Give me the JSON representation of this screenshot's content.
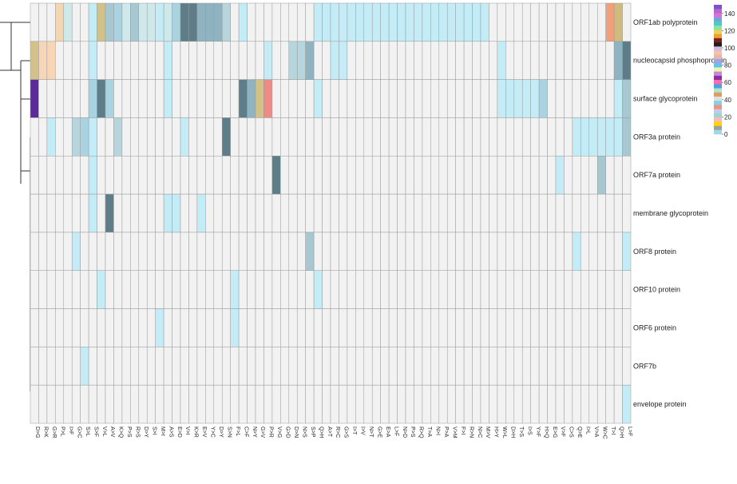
{
  "chart_data": {
    "type": "heatmap",
    "title": "",
    "xlabel": "",
    "ylabel": "",
    "rows": [
      "ORF1ab polyprotein",
      "nucleocapsid phosphoprotein",
      "surface glycoprotein",
      "ORF3a protein",
      "ORF7a protein",
      "membrane glycoprotein",
      "ORF8 protein",
      "ORF10 protein",
      "ORF6 protein",
      "ORF7b",
      "envelope protein"
    ],
    "columns": [
      "D>G",
      "R>K",
      "G>R",
      "P>L",
      "I>F",
      "G>C",
      "S>L",
      "S>F",
      "V>L",
      "A>V",
      "K>Q",
      "P>S",
      "R>S",
      "D>Y",
      "S>I",
      "M>I",
      "A>S",
      "E>D",
      "V>I",
      "K>R",
      "E>V",
      "Y>C",
      "D>Y",
      "S>N",
      "F>L",
      "C>F",
      "N>Y",
      "G>V",
      "P>R",
      "V>G",
      "G>D",
      "D>N",
      "N>S",
      "S>P",
      "Q>H",
      "A>T",
      "R>C",
      "G>S",
      "I>T",
      "I>V",
      "N>T",
      "G>E",
      "E>A",
      "L>F",
      "N>D",
      "P>S",
      "R>Q",
      "T>A",
      "N>I",
      "P>A",
      "V>M",
      "F>I",
      "R>N",
      "N>C",
      "M>V",
      "H>Y",
      "W>L",
      "D>H",
      "T>S",
      "I>S",
      "Y>F",
      "H>Q",
      "E>G",
      "V>F",
      "C>S",
      "Q>E",
      "I>L",
      "V>A",
      "W>C",
      "T>I",
      "Q>H",
      "L>F"
    ],
    "values": [
      [
        0,
        0,
        0,
        25,
        15,
        0,
        0,
        10,
        50,
        30,
        20,
        15,
        30,
        15,
        15,
        10,
        15,
        20,
        80,
        80,
        40,
        40,
        40,
        25,
        0,
        10,
        0,
        0,
        0,
        0,
        0,
        0,
        0,
        0,
        10,
        10,
        10,
        10,
        10,
        10,
        10,
        10,
        10,
        10,
        10,
        10,
        10,
        10,
        10,
        10,
        10,
        10,
        10,
        10,
        10,
        0,
        0,
        0,
        0,
        0,
        0,
        0,
        0,
        0,
        0,
        0,
        0,
        0,
        0,
        50,
        60,
        0
      ],
      [
        60,
        30,
        30,
        0,
        0,
        0,
        0,
        8,
        0,
        0,
        0,
        0,
        0,
        0,
        0,
        0,
        10,
        0,
        0,
        0,
        0,
        0,
        0,
        0,
        0,
        0,
        0,
        0,
        10,
        0,
        0,
        25,
        25,
        40,
        0,
        0,
        10,
        10,
        0,
        0,
        0,
        0,
        0,
        0,
        0,
        0,
        0,
        0,
        0,
        0,
        0,
        0,
        0,
        0,
        0,
        0,
        10,
        0,
        0,
        0,
        0,
        0,
        0,
        0,
        0,
        0,
        0,
        0,
        0,
        0,
        40,
        80
      ],
      [
        150,
        0,
        0,
        0,
        0,
        0,
        0,
        20,
        80,
        20,
        0,
        0,
        0,
        0,
        0,
        0,
        10,
        0,
        0,
        0,
        0,
        0,
        0,
        0,
        0,
        80,
        40,
        50,
        80,
        0,
        0,
        0,
        0,
        0,
        10,
        0,
        0,
        0,
        0,
        0,
        0,
        0,
        0,
        0,
        0,
        0,
        0,
        0,
        0,
        0,
        0,
        0,
        0,
        0,
        0,
        0,
        10,
        10,
        10,
        10,
        10,
        20,
        0,
        0,
        0,
        0,
        0,
        0,
        0,
        0,
        10,
        30
      ],
      [
        0,
        0,
        10,
        0,
        0,
        25,
        20,
        10,
        0,
        0,
        25,
        0,
        0,
        0,
        0,
        0,
        0,
        0,
        10,
        0,
        0,
        0,
        0,
        80,
        0,
        0,
        0,
        0,
        0,
        0,
        0,
        0,
        0,
        0,
        0,
        0,
        0,
        0,
        0,
        0,
        0,
        0,
        0,
        0,
        0,
        0,
        0,
        0,
        0,
        0,
        0,
        0,
        0,
        0,
        0,
        0,
        0,
        0,
        0,
        0,
        0,
        0,
        0,
        0,
        0,
        10,
        10,
        10,
        10,
        10,
        10,
        30
      ],
      [
        0,
        0,
        0,
        0,
        0,
        0,
        0,
        10,
        0,
        0,
        0,
        0,
        0,
        0,
        0,
        0,
        0,
        0,
        0,
        0,
        0,
        0,
        0,
        0,
        0,
        0,
        0,
        0,
        0,
        80,
        0,
        0,
        0,
        0,
        0,
        0,
        0,
        0,
        0,
        0,
        0,
        0,
        0,
        0,
        0,
        0,
        0,
        0,
        0,
        0,
        0,
        0,
        0,
        0,
        0,
        0,
        0,
        0,
        0,
        0,
        0,
        0,
        0,
        10,
        0,
        0,
        0,
        0,
        30,
        0,
        0,
        0
      ],
      [
        0,
        0,
        0,
        0,
        0,
        0,
        0,
        10,
        0,
        80,
        0,
        0,
        0,
        0,
        0,
        0,
        10,
        10,
        0,
        0,
        10,
        0,
        0,
        0,
        0,
        0,
        0,
        0,
        0,
        0,
        0,
        0,
        0,
        0,
        0,
        0,
        0,
        0,
        0,
        0,
        0,
        0,
        0,
        0,
        0,
        0,
        0,
        0,
        0,
        0,
        0,
        0,
        0,
        0,
        0,
        0,
        0,
        0,
        0,
        0,
        0,
        0,
        0,
        0,
        0,
        0,
        0,
        0,
        0,
        0,
        0,
        0
      ],
      [
        0,
        0,
        0,
        0,
        0,
        10,
        0,
        0,
        0,
        0,
        0,
        0,
        0,
        0,
        0,
        0,
        0,
        0,
        0,
        0,
        0,
        0,
        0,
        0,
        0,
        0,
        0,
        0,
        0,
        0,
        0,
        0,
        0,
        30,
        0,
        0,
        0,
        0,
        0,
        0,
        0,
        0,
        0,
        0,
        0,
        0,
        0,
        0,
        0,
        0,
        0,
        0,
        0,
        0,
        0,
        0,
        0,
        0,
        0,
        0,
        0,
        0,
        0,
        0,
        0,
        10,
        0,
        0,
        0,
        0,
        0,
        10
      ],
      [
        0,
        0,
        0,
        0,
        0,
        0,
        0,
        0,
        10,
        0,
        0,
        0,
        0,
        0,
        0,
        0,
        0,
        0,
        0,
        0,
        0,
        0,
        0,
        0,
        10,
        0,
        0,
        0,
        0,
        0,
        0,
        0,
        0,
        0,
        10,
        0,
        0,
        0,
        0,
        0,
        0,
        0,
        0,
        0,
        0,
        0,
        0,
        0,
        0,
        0,
        0,
        0,
        0,
        0,
        0,
        0,
        0,
        0,
        0,
        0,
        0,
        0,
        0,
        0,
        0,
        0,
        0,
        0,
        0,
        0,
        0,
        0
      ],
      [
        0,
        0,
        0,
        0,
        0,
        0,
        0,
        0,
        0,
        0,
        0,
        0,
        0,
        0,
        0,
        10,
        0,
        0,
        0,
        0,
        0,
        0,
        0,
        0,
        10,
        0,
        0,
        0,
        0,
        0,
        0,
        0,
        0,
        0,
        0,
        0,
        0,
        0,
        0,
        0,
        0,
        0,
        0,
        0,
        0,
        0,
        0,
        0,
        0,
        0,
        0,
        0,
        0,
        0,
        0,
        0,
        0,
        0,
        0,
        0,
        0,
        0,
        0,
        0,
        0,
        0,
        0,
        0,
        0,
        0,
        0,
        0
      ],
      [
        0,
        0,
        0,
        0,
        0,
        0,
        10,
        0,
        0,
        0,
        0,
        0,
        0,
        0,
        0,
        0,
        0,
        0,
        0,
        0,
        0,
        0,
        0,
        0,
        0,
        0,
        0,
        0,
        0,
        0,
        0,
        0,
        0,
        0,
        0,
        0,
        0,
        0,
        0,
        0,
        0,
        0,
        0,
        0,
        0,
        0,
        0,
        0,
        0,
        0,
        0,
        0,
        0,
        0,
        0,
        0,
        0,
        0,
        0,
        0,
        0,
        0,
        0,
        0,
        0,
        0,
        0,
        0,
        0,
        0,
        0,
        0
      ],
      [
        0,
        0,
        0,
        0,
        0,
        0,
        0,
        0,
        0,
        0,
        0,
        0,
        0,
        0,
        0,
        0,
        0,
        0,
        0,
        0,
        0,
        0,
        0,
        0,
        0,
        0,
        0,
        0,
        0,
        0,
        0,
        0,
        0,
        0,
        0,
        0,
        0,
        0,
        0,
        0,
        0,
        0,
        0,
        0,
        0,
        0,
        0,
        0,
        0,
        0,
        0,
        0,
        0,
        0,
        0,
        0,
        0,
        0,
        0,
        0,
        0,
        0,
        0,
        0,
        0,
        0,
        0,
        0,
        0,
        0,
        0,
        10
      ]
    ],
    "color_key": {
      "ticks": [
        0,
        20,
        40,
        60,
        80,
        100,
        120,
        140
      ],
      "range": [
        0,
        150
      ],
      "colors": [
        "#f2f2f2",
        "#c4ecf7",
        "#9fd8e8",
        "#b9dde3",
        "#a9c9d2",
        "#8fb3c0",
        "#5d7d88",
        "#d2c7b5",
        "#f2c6a2",
        "#ef8a84",
        "#a05a9a",
        "#5b2a9b"
      ]
    },
    "legend_position": "top-right",
    "dendrogram": "rows"
  }
}
